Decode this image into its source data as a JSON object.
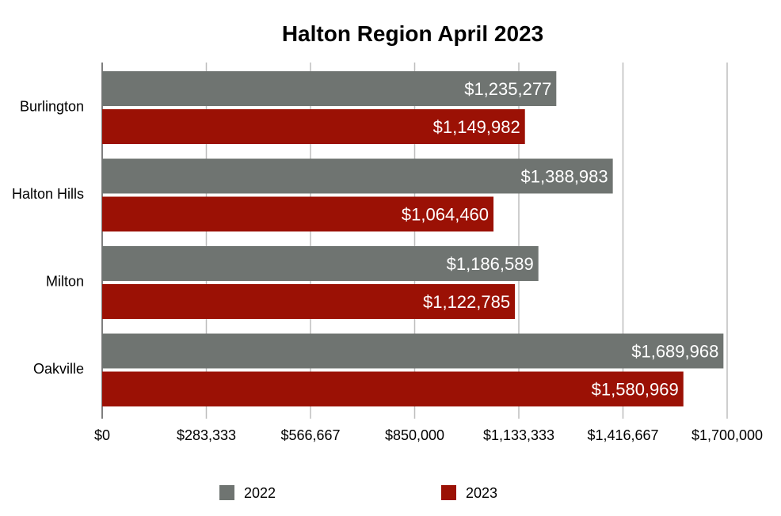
{
  "chart_data": {
    "type": "bar",
    "orientation": "horizontal",
    "title": "Halton Region April 2023",
    "xlabel": "",
    "ylabel": "",
    "categories": [
      "Burlington",
      "Halton Hills",
      "Milton",
      "Oakville"
    ],
    "series": [
      {
        "name": "2022",
        "color": "#6f7471",
        "values": [
          1235277,
          1388983,
          1186589,
          1689968
        ],
        "labels": [
          "$1,235,277",
          "$1,388,983",
          "$1,186,589",
          "$1,689,968"
        ]
      },
      {
        "name": "2023",
        "color": "#9b1105",
        "values": [
          1149982,
          1064460,
          1122785,
          1580969
        ],
        "labels": [
          "$1,149,982",
          "$1,064,460",
          "$1,122,785",
          "$1,580,969"
        ]
      }
    ],
    "xlim": [
      0,
      1700000
    ],
    "xticks": [
      0,
      283333,
      566667,
      850000,
      1133333,
      1416667,
      1700000
    ],
    "xtick_labels": [
      "$0",
      "$283,333",
      "$566,667",
      "$850,000",
      "$1,133,333",
      "$1,416,667",
      "$1,700,000"
    ],
    "grid": true,
    "legend_position": "bottom"
  }
}
